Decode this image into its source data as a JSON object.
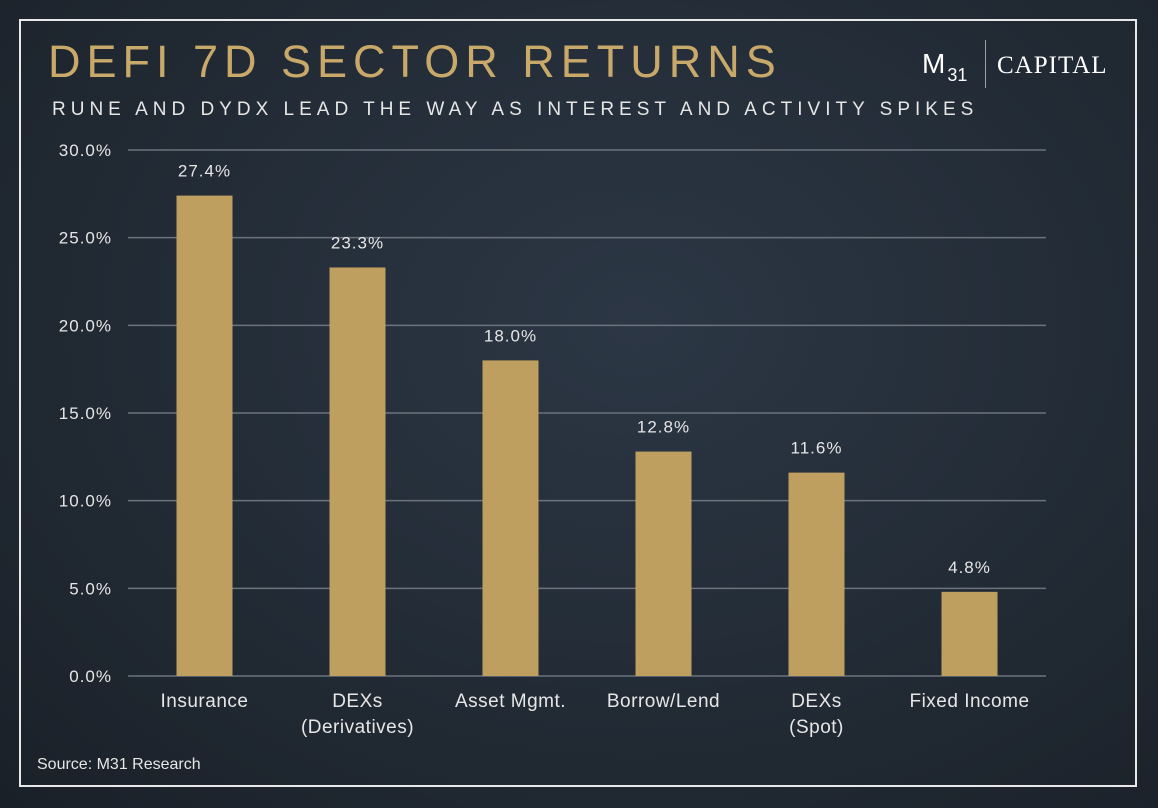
{
  "header": {
    "title": "DEFI 7D SECTOR RETURNS",
    "subtitle": "RUNE AND DYDX LEAD THE WAY AS INTEREST AND ACTIVITY SPIKES"
  },
  "logo": {
    "mark": "M",
    "mark_sub": "31",
    "word": "CAPITAL"
  },
  "footer": {
    "source": "Source: M31 Research"
  },
  "colors": {
    "bar": "#bf9f5f",
    "title": "#c9a96a",
    "grid": "#6b737c",
    "text": "#e6e6e6"
  },
  "chart_data": {
    "type": "bar",
    "categories": [
      "Insurance",
      "DEXs (Derivatives)",
      "Asset Mgmt.",
      "Borrow/Lend",
      "DEXs (Spot)",
      "Fixed Income"
    ],
    "category_lines": [
      [
        "Insurance"
      ],
      [
        "DEXs",
        "(Derivatives)"
      ],
      [
        "Asset Mgmt."
      ],
      [
        "Borrow/Lend"
      ],
      [
        "DEXs",
        "(Spot)"
      ],
      [
        "Fixed Income"
      ]
    ],
    "values": [
      27.4,
      23.3,
      18.0,
      12.8,
      11.6,
      4.8
    ],
    "data_labels": [
      "27.4%",
      "23.3%",
      "18.0%",
      "12.8%",
      "11.6%",
      "4.8%"
    ],
    "ylim": [
      0,
      30
    ],
    "yticks": [
      0,
      5,
      10,
      15,
      20,
      25,
      30
    ],
    "ytick_labels": [
      "0.0%",
      "5.0%",
      "10.0%",
      "15.0%",
      "20.0%",
      "25.0%",
      "30.0%"
    ],
    "grid": true,
    "legend": "none",
    "title": "DEFI 7D SECTOR RETURNS",
    "xlabel": "",
    "ylabel": ""
  }
}
